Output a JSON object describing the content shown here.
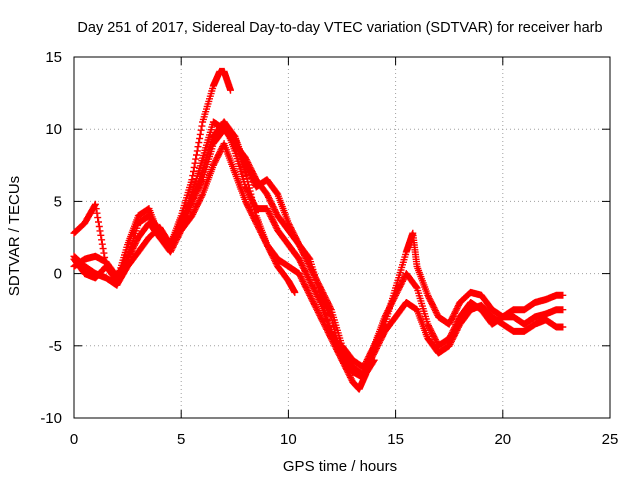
{
  "chart_data": {
    "type": "scatter",
    "title": "Day 251 of 2017, Sidereal Day-to-day VTEC variation (SDTVAR) for receiver harb",
    "xlabel": "GPS time / hours",
    "ylabel": "SDTVAR / TECUs",
    "xlim": [
      0,
      25
    ],
    "ylim": [
      -10,
      15
    ],
    "xticks": [
      0,
      5,
      10,
      15,
      20,
      25
    ],
    "yticks": [
      -10,
      -5,
      0,
      5,
      10,
      15
    ],
    "xtick_labels": [
      "0",
      "5",
      "10",
      "15",
      "20",
      "25"
    ],
    "ytick_labels": [
      "-10",
      "-5",
      "0",
      "5",
      "10",
      "15"
    ],
    "grid": true,
    "marker": "+",
    "color": "#ff0000",
    "series": [
      {
        "name": "track-1",
        "x": [
          0.0,
          0.5,
          1.0,
          1.5,
          2.0,
          2.5,
          3.0,
          3.5,
          4.0,
          4.5,
          5.0,
          5.5,
          6.0,
          6.5,
          6.8,
          7.0,
          7.3
        ],
        "y": [
          2.8,
          3.5,
          4.8,
          0.5,
          -0.5,
          1.0,
          3.5,
          4.0,
          3.0,
          2.0,
          4.0,
          6.5,
          10.5,
          13.0,
          14.0,
          14.0,
          12.7
        ]
      },
      {
        "name": "track-2",
        "x": [
          0.0,
          0.5,
          1.0,
          1.5,
          2.0,
          2.5,
          3.0,
          3.5,
          4.0,
          4.5,
          5.0,
          5.5,
          6.0,
          6.5,
          7.0,
          7.5,
          8.0,
          8.5,
          9.0,
          9.5,
          10.0,
          10.5,
          11.0,
          11.5,
          12.0,
          12.5,
          13.0,
          13.3,
          13.6,
          14.0,
          14.5,
          15.0,
          15.5,
          15.8,
          16.0,
          16.5,
          17.0,
          17.5,
          18.0,
          18.5,
          19.0,
          19.5,
          20.0,
          20.5,
          21.0,
          21.5,
          22.0,
          22.5,
          22.8
        ],
        "y": [
          1.2,
          0.5,
          0.0,
          -0.3,
          -0.8,
          0.5,
          1.5,
          2.5,
          3.2,
          2.0,
          3.5,
          5.5,
          8.0,
          10.5,
          10.0,
          9.0,
          8.0,
          6.5,
          5.5,
          4.0,
          3.0,
          2.0,
          1.0,
          -1.5,
          -3.0,
          -6.0,
          -7.5,
          -8.0,
          -7.0,
          -5.0,
          -3.5,
          -1.0,
          1.5,
          2.8,
          0.5,
          -1.5,
          -3.0,
          -3.5,
          -2.0,
          -1.3,
          -1.5,
          -2.5,
          -3.0,
          -2.5,
          -2.5,
          -2.0,
          -1.8,
          -1.5,
          -1.5
        ]
      },
      {
        "name": "track-3",
        "x": [
          0.0,
          0.5,
          1.0,
          1.5,
          2.0,
          2.5,
          3.0,
          3.5,
          4.0,
          4.5,
          5.0,
          5.5,
          6.0,
          6.5,
          7.0,
          7.5,
          8.0,
          8.5,
          9.0,
          9.5,
          10.0,
          10.5,
          11.0,
          11.5,
          12.0,
          12.5,
          13.0,
          13.5,
          14.0,
          14.5,
          15.0,
          15.5,
          16.0,
          16.5,
          17.0,
          17.5,
          18.0,
          18.5,
          19.0,
          19.5,
          20.0,
          20.5,
          21.0,
          21.5,
          22.0,
          22.5,
          22.8
        ],
        "y": [
          1.0,
          0.0,
          -0.3,
          0.5,
          -0.5,
          2.0,
          4.0,
          4.5,
          2.5,
          1.5,
          3.0,
          5.0,
          7.0,
          9.5,
          10.5,
          8.5,
          6.0,
          4.5,
          4.5,
          3.0,
          2.0,
          1.0,
          -0.5,
          -2.0,
          -4.0,
          -5.5,
          -6.5,
          -7.0,
          -5.5,
          -4.0,
          -3.0,
          -2.0,
          -2.5,
          -4.5,
          -5.5,
          -5.0,
          -3.5,
          -2.5,
          -2.2,
          -3.0,
          -3.5,
          -4.0,
          -4.0,
          -3.5,
          -3.2,
          -3.7,
          -3.7
        ]
      },
      {
        "name": "track-4",
        "x": [
          0.0,
          0.5,
          1.0,
          1.5,
          2.0,
          2.5,
          3.0,
          3.5,
          4.0,
          4.5,
          5.0,
          5.5,
          6.0,
          6.5,
          7.0,
          7.5,
          8.0,
          8.5,
          9.0,
          9.5,
          10.0,
          10.5,
          11.0,
          11.5,
          12.0,
          12.5,
          13.0,
          13.5,
          14.0,
          14.5,
          15.0,
          15.5,
          16.0,
          16.5,
          17.0,
          17.5,
          18.0,
          18.5,
          19.0,
          19.5,
          20.0,
          20.5,
          21.0,
          21.5,
          22.0,
          22.5,
          22.8
        ],
        "y": [
          0.5,
          1.0,
          1.2,
          0.8,
          -0.2,
          1.0,
          2.5,
          3.5,
          2.5,
          2.0,
          3.5,
          5.0,
          6.5,
          9.0,
          10.0,
          9.5,
          7.5,
          6.0,
          6.5,
          5.5,
          3.5,
          2.0,
          0.5,
          -1.0,
          -2.5,
          -5.0,
          -6.0,
          -6.5,
          -5.0,
          -3.0,
          -1.5,
          0.0,
          -1.0,
          -3.5,
          -5.0,
          -4.5,
          -3.0,
          -2.0,
          -2.5,
          -3.5,
          -3.0,
          -3.0,
          -3.5,
          -3.0,
          -2.8,
          -2.5,
          -2.5
        ]
      },
      {
        "name": "track-5",
        "x": [
          5.0,
          5.5,
          6.0,
          6.5,
          7.0,
          7.5,
          8.0,
          8.5,
          9.0,
          9.5,
          10.0,
          10.5,
          11.0,
          11.5,
          12.0,
          12.5,
          13.0,
          13.5,
          14.0
        ],
        "y": [
          3.0,
          4.0,
          5.5,
          7.5,
          9.0,
          7.0,
          5.0,
          3.5,
          2.0,
          1.0,
          0.5,
          0.0,
          -1.5,
          -3.0,
          -4.5,
          -6.0,
          -6.8,
          -7.2,
          -6.0
        ]
      },
      {
        "name": "track-6",
        "x": [
          7.0,
          7.5,
          8.0,
          8.5,
          9.0,
          9.5,
          10.0,
          10.3
        ],
        "y": [
          10.5,
          9.5,
          7.0,
          4.0,
          2.0,
          0.5,
          -0.5,
          -1.3
        ]
      }
    ]
  }
}
